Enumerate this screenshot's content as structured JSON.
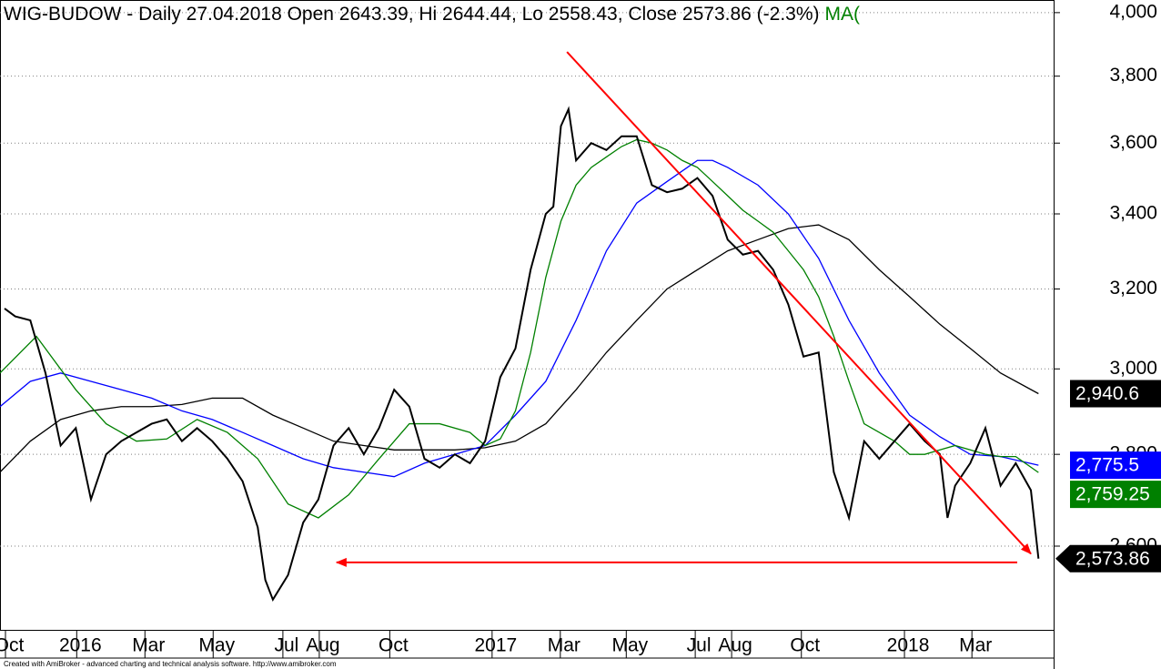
{
  "chart_data": {
    "type": "line",
    "title": "WIG-BUDOW - Daily 27.04.2018 Open 2643.39, Hi 2644.44, Lo 2558.43, Close 2573.86 (-2.3%)",
    "legend_text": "MA(",
    "legend_color": "#008000",
    "footer": "Created with AmiBroker - advanced charting and technical analysis software. http://www.amibroker.com",
    "log_scale": true,
    "grid": true,
    "xlim": [
      0,
      139
    ],
    "ylim": [
      2430,
      4041
    ],
    "yticks": [
      {
        "value": 2600,
        "label": "2,600"
      },
      {
        "value": 2800,
        "label": "2,800"
      },
      {
        "value": 3000,
        "label": "3,000"
      },
      {
        "value": 3200,
        "label": "3,200"
      },
      {
        "value": 3400,
        "label": "3,400"
      },
      {
        "value": 3600,
        "label": "3,600"
      },
      {
        "value": 3800,
        "label": "3,800"
      },
      {
        "value": 4000,
        "label": "4,000"
      }
    ],
    "xticks": [
      {
        "value": 1.2,
        "label": "Oct"
      },
      {
        "value": 10.6,
        "label": "2016"
      },
      {
        "value": 19.6,
        "label": "Mar"
      },
      {
        "value": 28.6,
        "label": "May"
      },
      {
        "value": 37.8,
        "label": "Jul"
      },
      {
        "value": 42.6,
        "label": "Aug"
      },
      {
        "value": 51.9,
        "label": "Oct"
      },
      {
        "value": 65.4,
        "label": "2017"
      },
      {
        "value": 74.4,
        "label": "Mar"
      },
      {
        "value": 83.1,
        "label": "May"
      },
      {
        "value": 92.2,
        "label": "Jul"
      },
      {
        "value": 97,
        "label": "Aug"
      },
      {
        "value": 106.2,
        "label": "Oct"
      },
      {
        "value": 119.8,
        "label": "2018"
      },
      {
        "value": 128.7,
        "label": "Mar"
      }
    ],
    "series": [
      {
        "color": "#000000",
        "last_label": "2,940.6",
        "x": [
          0,
          4,
          8,
          12,
          16,
          20,
          24,
          28,
          32,
          36,
          40,
          44,
          48,
          52,
          56,
          60,
          64,
          68,
          72,
          76,
          80,
          84,
          88,
          92,
          96,
          100,
          104,
          108,
          112,
          116,
          120,
          124,
          128,
          132,
          137
        ],
        "values": [
          2760,
          2830,
          2880,
          2900,
          2910,
          2910,
          2915,
          2930,
          2930,
          2890,
          2860,
          2830,
          2820,
          2810,
          2810,
          2810,
          2815,
          2830,
          2870,
          2950,
          3040,
          3120,
          3200,
          3250,
          3300,
          3330,
          3360,
          3370,
          3330,
          3250,
          3180,
          3110,
          3050,
          2990,
          2940.6
        ]
      },
      {
        "color": "#0000ff",
        "last_label": "2,775.5",
        "x": [
          0,
          4,
          8,
          12,
          16,
          20,
          24,
          28,
          32,
          36,
          40,
          44,
          48,
          52,
          56,
          60,
          64,
          68,
          72,
          76,
          80,
          84,
          88,
          92,
          94,
          96,
          100,
          104,
          108,
          112,
          116,
          120,
          124,
          128,
          132,
          137
        ],
        "values": [
          2910,
          2970,
          2990,
          2970,
          2950,
          2930,
          2900,
          2880,
          2850,
          2820,
          2790,
          2770,
          2760,
          2750,
          2780,
          2800,
          2820,
          2890,
          2970,
          3120,
          3300,
          3430,
          3490,
          3550,
          3550,
          3530,
          3480,
          3400,
          3280,
          3120,
          2990,
          2890,
          2840,
          2800,
          2795,
          2775.5
        ]
      },
      {
        "color": "#008000",
        "last_label": "2,759.25",
        "x": [
          0,
          4.8,
          10,
          14,
          18,
          22,
          26,
          30,
          34,
          38,
          42,
          46,
          50,
          54,
          58,
          62,
          64,
          66,
          68,
          70,
          72,
          74,
          76,
          78,
          80,
          82,
          84,
          86,
          88,
          90,
          92,
          94,
          96,
          98,
          100,
          102,
          104,
          106,
          108,
          110,
          112,
          114,
          116,
          118,
          120,
          122,
          124,
          126,
          128,
          130,
          132,
          134,
          137
        ],
        "values": [
          2990,
          3080,
          2950,
          2870,
          2830,
          2835,
          2880,
          2850,
          2790,
          2690,
          2660,
          2710,
          2790,
          2870,
          2870,
          2850,
          2820,
          2835,
          2900,
          3040,
          3230,
          3380,
          3480,
          3530,
          3560,
          3590,
          3610,
          3600,
          3580,
          3550,
          3530,
          3490,
          3450,
          3410,
          3380,
          3350,
          3300,
          3250,
          3180,
          3080,
          2970,
          2870,
          2850,
          2830,
          2800,
          2800,
          2810,
          2820,
          2810,
          2800,
          2795,
          2795,
          2759.25
        ]
      },
      {
        "color": "#000000",
        "last_label": "2,573.86",
        "close": true,
        "x": [
          0.6,
          2,
          4,
          6,
          8,
          10,
          12,
          14,
          16,
          18,
          20,
          22,
          24,
          26,
          28,
          30,
          32,
          34,
          35,
          36,
          38,
          40,
          42,
          44,
          46,
          48,
          50,
          52,
          54,
          56,
          58,
          60,
          62,
          64,
          66,
          68,
          70,
          72,
          73,
          74,
          75,
          76,
          78,
          80,
          82,
          84,
          86,
          88,
          90,
          92,
          94,
          96,
          98,
          100,
          102,
          104,
          106,
          108,
          110,
          112,
          114,
          116,
          118,
          120,
          122,
          124,
          125,
          126,
          128,
          130,
          132,
          134,
          136,
          137
        ],
        "values": [
          3150,
          3130,
          3120,
          2990,
          2820,
          2860,
          2700,
          2800,
          2830,
          2850,
          2870,
          2880,
          2830,
          2860,
          2830,
          2790,
          2740,
          2640,
          2530,
          2490,
          2540,
          2650,
          2700,
          2820,
          2860,
          2800,
          2860,
          2950,
          2910,
          2790,
          2770,
          2800,
          2780,
          2830,
          2980,
          3050,
          3250,
          3400,
          3420,
          3650,
          3700,
          3550,
          3600,
          3580,
          3620,
          3620,
          3480,
          3460,
          3470,
          3500,
          3450,
          3330,
          3290,
          3300,
          3250,
          3160,
          3030,
          3040,
          2760,
          2660,
          2830,
          2790,
          2830,
          2870,
          2830,
          2800,
          2660,
          2730,
          2780,
          2860,
          2730,
          2780,
          2720,
          2573.86
        ]
      }
    ],
    "annotations": [
      {
        "color": "#ff0000",
        "x": [
          74.8,
          136
        ],
        "y": [
          3875,
          2584
        ]
      },
      {
        "color": "#ff0000",
        "x": [
          134.2,
          44.4
        ],
        "y": [
          2566,
          2566
        ]
      }
    ]
  }
}
